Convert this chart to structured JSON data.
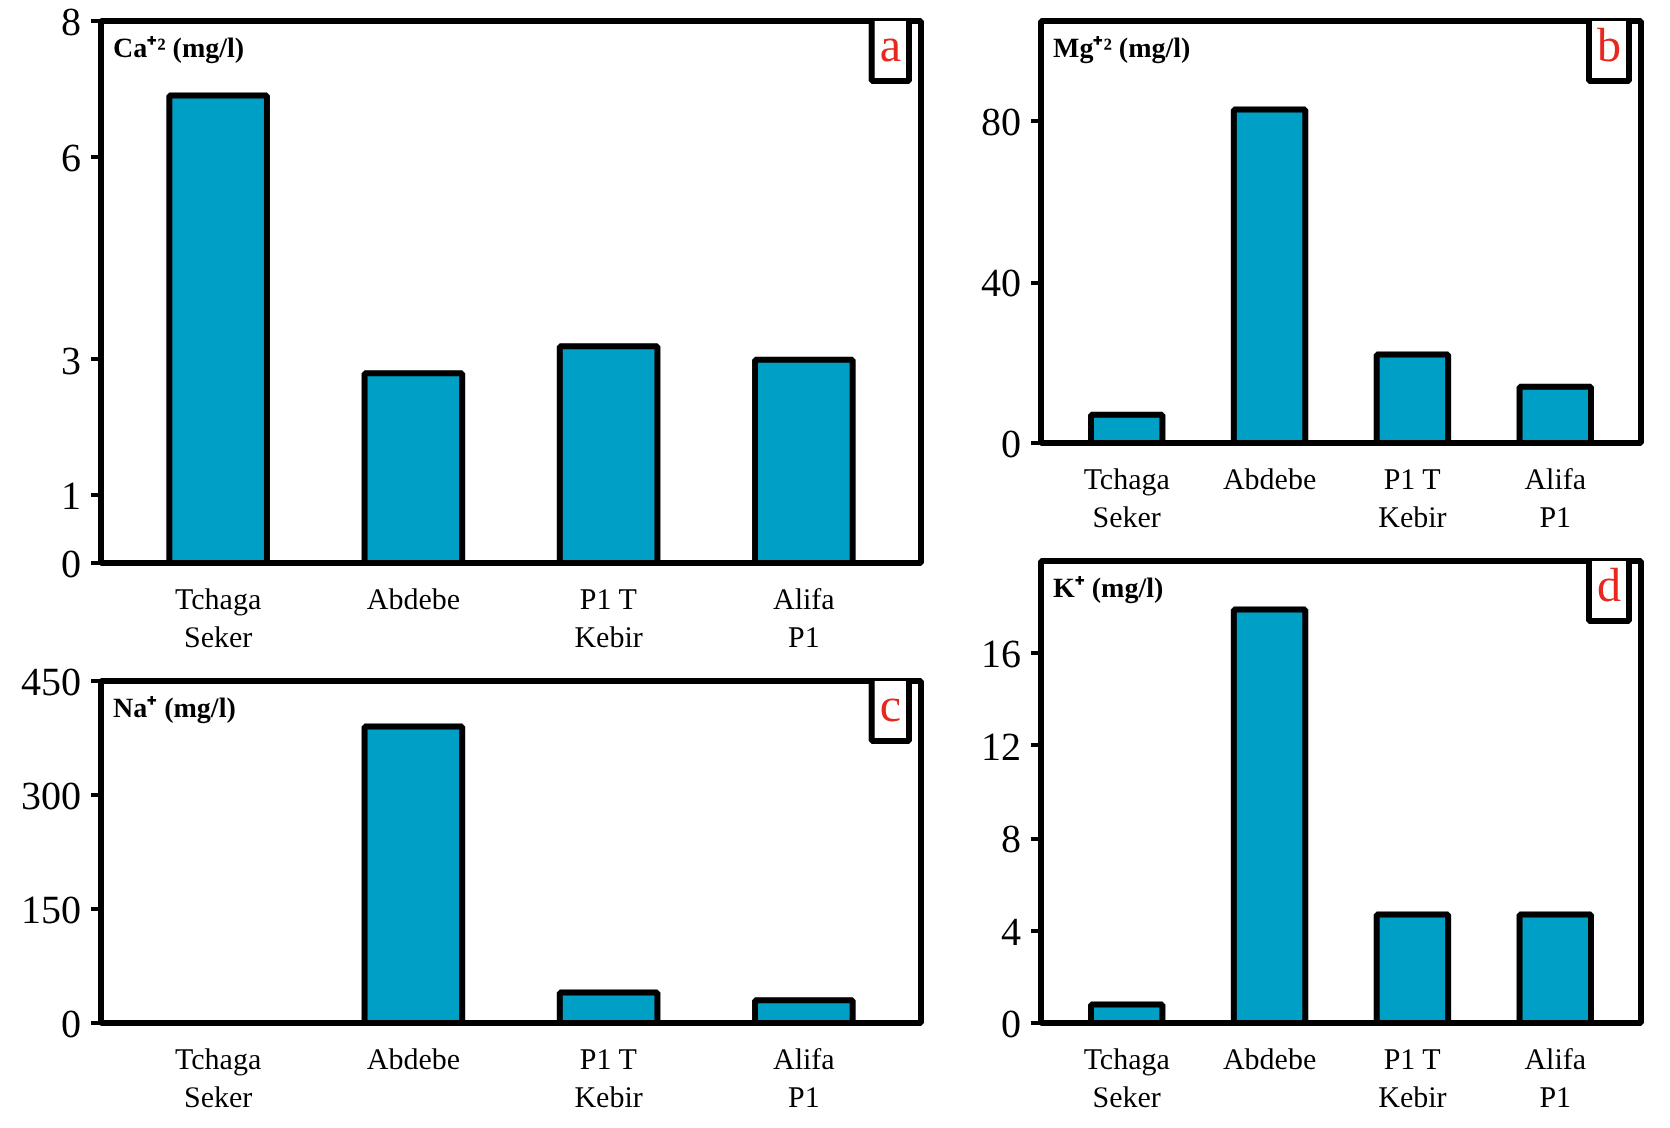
{
  "chart_data": [
    {
      "type": "bar",
      "title": "Ca⁺² (mg/l)",
      "annotations": [
        "a"
      ],
      "categories": [
        "Tchaga\nSeker",
        "Abdebe",
        "P1 T\nKebir",
        "Alifa\nP1"
      ],
      "values": [
        6.9,
        2.8,
        3.2,
        3.0
      ],
      "color": "#00a0c6",
      "ylim": [
        0,
        8
      ],
      "yticks": [
        0,
        1,
        3,
        6,
        8
      ],
      "grid": false
    },
    {
      "type": "bar",
      "title": "Mg⁺² (mg/l)",
      "annotations": [
        "b"
      ],
      "categories": [
        "Tchaga\nSeker",
        "Abdebe",
        "P1 T\nKebir",
        "Alifa\nP1"
      ],
      "values": [
        7,
        83,
        22,
        14
      ],
      "color": "#00a0c6",
      "ylim": [
        0,
        105
      ],
      "yticks": [
        0,
        40,
        80
      ],
      "grid": false
    },
    {
      "type": "bar",
      "title": "Na⁺ (mg/l)",
      "annotations": [
        "c"
      ],
      "categories": [
        "Tchaga\nSeker",
        "Abdebe",
        "P1 T\nKebir",
        "Alifa\nP1"
      ],
      "values": [
        null,
        390,
        40,
        30
      ],
      "color": "#00a0c6",
      "ylim": [
        0,
        450
      ],
      "yticks": [
        0,
        150,
        300,
        450
      ],
      "grid": false
    },
    {
      "type": "bar",
      "title": "K⁺ (mg/l)",
      "annotations": [
        "d"
      ],
      "categories": [
        "Tchaga\nSeker",
        "Abdebe",
        "P1 T\nKebir",
        "Alifa\nP1"
      ],
      "values": [
        0.8,
        17.9,
        4.7,
        4.7
      ],
      "color": "#00a0c6",
      "ylim": [
        0,
        20
      ],
      "yticks": [
        0,
        4,
        8,
        12,
        16
      ],
      "grid": false
    }
  ]
}
